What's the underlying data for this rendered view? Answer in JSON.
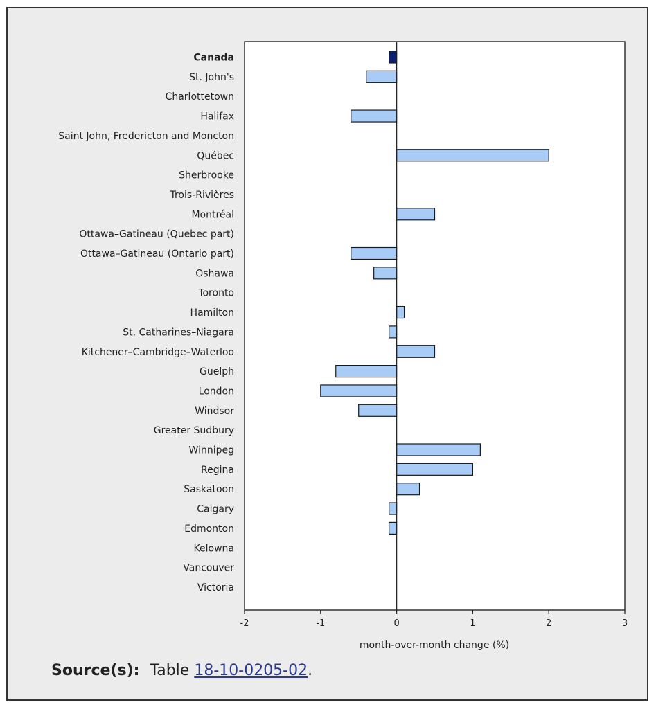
{
  "chart_data": {
    "type": "bar",
    "orientation": "horizontal",
    "xlabel": "month-over-month change (%)",
    "ylabel": "",
    "xlim": [
      -2,
      3
    ],
    "xticks": [
      -2,
      -1,
      0,
      1,
      2,
      3
    ],
    "grid": false,
    "highlight_category": "Canada",
    "colors": {
      "highlight": "#0b2170",
      "bar": "#a9ccf7",
      "bar_stroke": "#1a1a1a",
      "axis": "#222222",
      "plot_bg": "#ffffff"
    },
    "categories": [
      "Canada",
      "St. John's",
      "Charlottetown",
      "Halifax",
      "Saint John, Fredericton and Moncton",
      "Québec",
      "Sherbrooke",
      "Trois-Rivières",
      "Montréal",
      "Ottawa–Gatineau (Quebec part)",
      "Ottawa–Gatineau (Ontario part)",
      "Oshawa",
      "Toronto",
      "Hamilton",
      "St. Catharines–Niagara",
      "Kitchener–Cambridge–Waterloo",
      "Guelph",
      "London",
      "Windsor",
      "Greater Sudbury",
      "Winnipeg",
      "Regina",
      "Saskatoon",
      "Calgary",
      "Edmonton",
      "Kelowna",
      "Vancouver",
      "Victoria"
    ],
    "values": [
      -0.1,
      -0.4,
      0.0,
      -0.6,
      0.0,
      2.0,
      0.0,
      0.0,
      0.5,
      0.0,
      -0.6,
      -0.3,
      0.0,
      0.1,
      -0.1,
      0.5,
      -0.8,
      -1.0,
      -0.5,
      0.0,
      1.1,
      1.0,
      0.3,
      -0.1,
      -0.1,
      0.0,
      0.0,
      0.0
    ]
  },
  "source": {
    "label": "Source(s):",
    "prefix": "Table",
    "link_text": "18-10-0205-02",
    "suffix": "."
  }
}
